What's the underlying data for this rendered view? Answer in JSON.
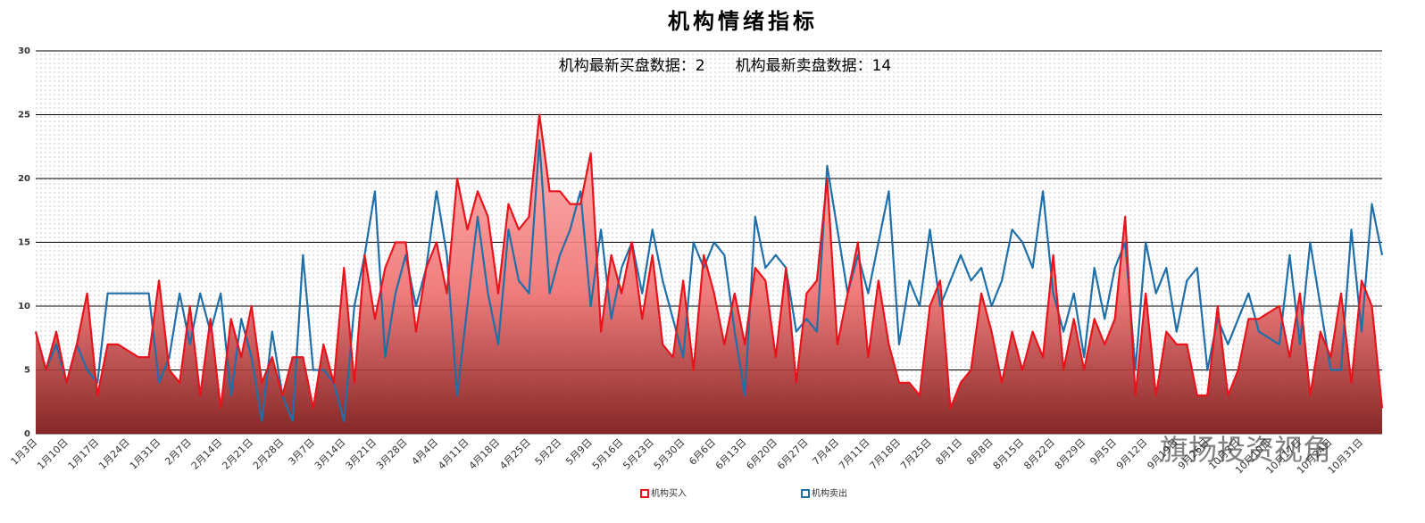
{
  "chart_data": {
    "type": "line",
    "title": "机构情绪指标",
    "subtitle": "机构最新买盘数据：2　　机构最新卖盘数据：14",
    "watermark": "旗扬投资视角",
    "categories": [
      "1月3日",
      null,
      null,
      "1月10日",
      null,
      null,
      "1月17日",
      null,
      null,
      "1月24日",
      null,
      null,
      "1月31日",
      null,
      null,
      "2月7日",
      null,
      null,
      "2月14日",
      null,
      null,
      "2月21日",
      null,
      null,
      "2月28日",
      null,
      null,
      "3月7日",
      null,
      null,
      "3月14日",
      null,
      null,
      "3月21日",
      null,
      null,
      "3月28日",
      null,
      null,
      "4月4日",
      null,
      null,
      "4月11日",
      null,
      null,
      "4月18日",
      null,
      null,
      "4月25日",
      null,
      null,
      "5月2日",
      null,
      null,
      "5月9日",
      null,
      null,
      "5月16日",
      null,
      null,
      "5月23日",
      null,
      null,
      "5月30日",
      null,
      null,
      "6月6日",
      null,
      null,
      "6月13日",
      null,
      null,
      "6月20日",
      null,
      null,
      "6月27日",
      null,
      null,
      "7月4日",
      null,
      null,
      "7月11日",
      null,
      null,
      "7月18日",
      null,
      null,
      "7月25日",
      null,
      null,
      "8月1日",
      null,
      null,
      "8月8日",
      null,
      null,
      "8月15日",
      null,
      null,
      "8月22日",
      null,
      null,
      "8月29日",
      null,
      null,
      "9月5日",
      null,
      null,
      "9月12日",
      null,
      null,
      "9月19日",
      null,
      null,
      "9月26日",
      null,
      null,
      "10月3日",
      null,
      null,
      "10月10日",
      null,
      null,
      "10月17日",
      null,
      null,
      "10月24日",
      null,
      null,
      "10月31日",
      null,
      null
    ],
    "series": [
      {
        "name": "机构买入",
        "color": "#e8141c",
        "area": true,
        "values": [
          8,
          5,
          8,
          4,
          7,
          11,
          3,
          7,
          7,
          6.5,
          6,
          6,
          12,
          5,
          4,
          10,
          3,
          9,
          2,
          9,
          6,
          10,
          4,
          6,
          3,
          6,
          6,
          2,
          7,
          4,
          13,
          4,
          14,
          9,
          13,
          15,
          15,
          8,
          13,
          15,
          11,
          20,
          16,
          19,
          17,
          11,
          18,
          16,
          17,
          25,
          19,
          19,
          18,
          18,
          22,
          8,
          14,
          11,
          15,
          9,
          14,
          7,
          6,
          12,
          5,
          14,
          11,
          7,
          11,
          7,
          13,
          12,
          6,
          13,
          4,
          11,
          12,
          20,
          7,
          11,
          15,
          6,
          12,
          7,
          4,
          4,
          3,
          10,
          12,
          2,
          4,
          5,
          11,
          8,
          4,
          8,
          5,
          8,
          6,
          14,
          5,
          9,
          5,
          9,
          7,
          9,
          17,
          3,
          11,
          3,
          8,
          7,
          7,
          3,
          3,
          10,
          3,
          5,
          9,
          9,
          9.5,
          10,
          6,
          11,
          3,
          8,
          6,
          11,
          4,
          12,
          10,
          2
        ]
      },
      {
        "name": "机构卖出",
        "color": "#1f6fa8",
        "area": false,
        "values": [
          8,
          5,
          7,
          4,
          7,
          5,
          4,
          11,
          11,
          11,
          11,
          11,
          4,
          6,
          11,
          7,
          11,
          8,
          11,
          3,
          9,
          6,
          1,
          8,
          3,
          1,
          14,
          5,
          5,
          4,
          1,
          10,
          14,
          19,
          6,
          11,
          14,
          10,
          13,
          19,
          14,
          3,
          10,
          17,
          11,
          7,
          16,
          12,
          11,
          23,
          11,
          14,
          16,
          19,
          10,
          16,
          9,
          13,
          15,
          11,
          16,
          12,
          9,
          6,
          15,
          13,
          15,
          14,
          8,
          3,
          17,
          13,
          14,
          13,
          8,
          9,
          8,
          21,
          16,
          11,
          14,
          11,
          15,
          19,
          7,
          12,
          10,
          16,
          10,
          12,
          14,
          12,
          13,
          10,
          12,
          16,
          15,
          13,
          19,
          11,
          8,
          11,
          6,
          13,
          9,
          13,
          15,
          5,
          15,
          11,
          13,
          8,
          12,
          13,
          5,
          9,
          7,
          9,
          11,
          8,
          7.5,
          7,
          14,
          7,
          15,
          10,
          5,
          5,
          16,
          8,
          18,
          14
        ]
      }
    ],
    "ylim": [
      0,
      30
    ],
    "yticks": [
      0,
      5,
      10,
      15,
      20,
      25,
      30
    ],
    "grid": true,
    "legend": "bottom"
  }
}
